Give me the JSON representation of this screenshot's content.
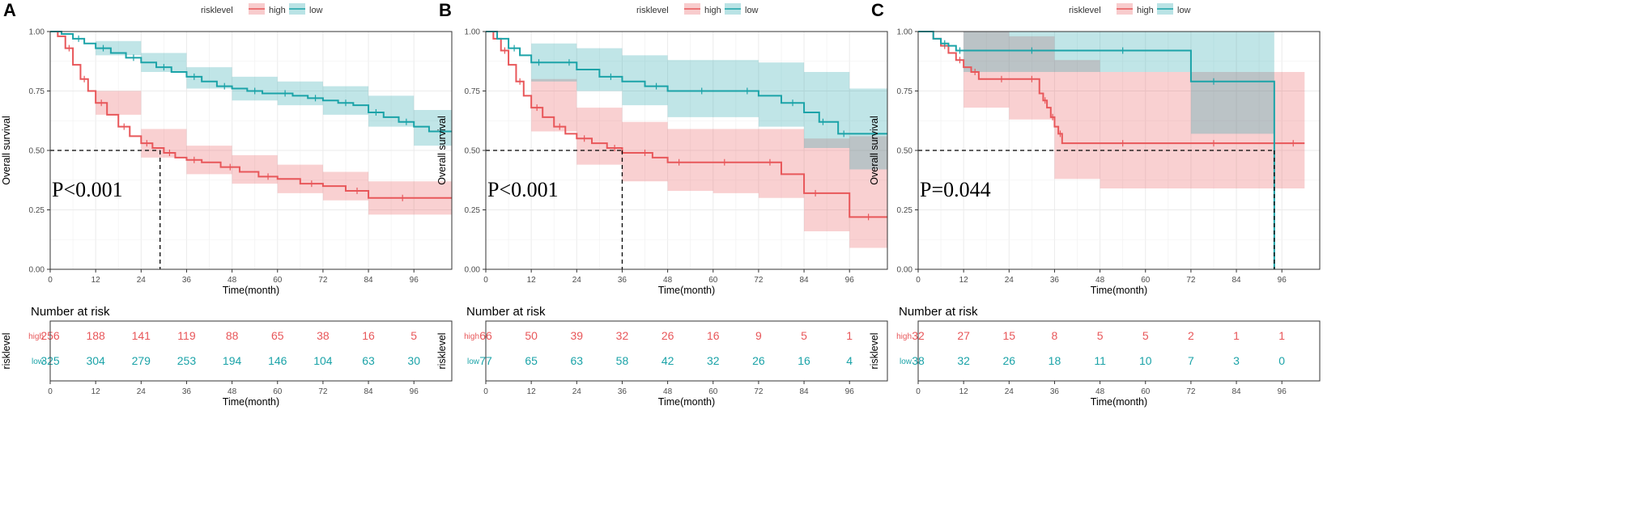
{
  "figure": {
    "legend_title": "risklevel"
  },
  "colors": {
    "high": "#E8575A",
    "low": "#1BA3A8",
    "grid": "#EBEBEB",
    "frame": "#333333"
  },
  "chart_data": [
    {
      "type": "line",
      "panel": "A",
      "legend_title": "risklevel",
      "legend": [
        "high",
        "low"
      ],
      "xlabel": "Time(month)",
      "ylabel": "Overall survival",
      "xlim": [
        0,
        106
      ],
      "ylim": [
        0,
        1
      ],
      "xticks": [
        0,
        12,
        24,
        36,
        48,
        60,
        72,
        84,
        96
      ],
      "yticks": [
        "0.00",
        "0.25",
        "0.50",
        "0.75",
        "1.00"
      ],
      "p_value": "P<0.001",
      "median": {
        "time": 29,
        "survival": 0.5
      },
      "series": [
        {
          "name": "high",
          "x": [
            0,
            2,
            4,
            6,
            8,
            10,
            12,
            15,
            18,
            21,
            24,
            27,
            30,
            33,
            36,
            40,
            45,
            50,
            55,
            60,
            66,
            72,
            78,
            84,
            90,
            96,
            106
          ],
          "y": [
            1.0,
            0.98,
            0.93,
            0.86,
            0.8,
            0.75,
            0.7,
            0.65,
            0.6,
            0.56,
            0.53,
            0.51,
            0.49,
            0.47,
            0.46,
            0.45,
            0.43,
            0.41,
            0.39,
            0.38,
            0.36,
            0.35,
            0.33,
            0.3,
            0.3,
            0.3,
            0.3
          ],
          "ci_band": [
            [
              0,
              1.0,
              1.0
            ],
            [
              12,
              0.65,
              0.75
            ],
            [
              24,
              0.47,
              0.59
            ],
            [
              36,
              0.4,
              0.52
            ],
            [
              48,
              0.36,
              0.48
            ],
            [
              60,
              0.32,
              0.44
            ],
            [
              72,
              0.29,
              0.41
            ],
            [
              84,
              0.23,
              0.37
            ],
            [
              106,
              0.22,
              0.38
            ]
          ],
          "at_risk": [
            256,
            188,
            141,
            119,
            88,
            65,
            38,
            16,
            5
          ]
        },
        {
          "name": "low",
          "x": [
            0,
            3,
            6,
            9,
            12,
            16,
            20,
            24,
            28,
            32,
            36,
            40,
            44,
            48,
            52,
            56,
            60,
            64,
            68,
            72,
            76,
            80,
            84,
            88,
            92,
            96,
            100,
            106
          ],
          "y": [
            1.0,
            0.99,
            0.97,
            0.95,
            0.93,
            0.91,
            0.89,
            0.87,
            0.85,
            0.83,
            0.81,
            0.79,
            0.77,
            0.76,
            0.75,
            0.74,
            0.74,
            0.73,
            0.72,
            0.71,
            0.7,
            0.69,
            0.66,
            0.64,
            0.62,
            0.6,
            0.58,
            0.58
          ],
          "ci_band": [
            [
              0,
              1.0,
              1.0
            ],
            [
              12,
              0.9,
              0.96
            ],
            [
              24,
              0.83,
              0.91
            ],
            [
              36,
              0.76,
              0.85
            ],
            [
              48,
              0.71,
              0.81
            ],
            [
              60,
              0.69,
              0.79
            ],
            [
              72,
              0.65,
              0.77
            ],
            [
              84,
              0.6,
              0.73
            ],
            [
              96,
              0.52,
              0.67
            ],
            [
              106,
              0.5,
              0.66
            ]
          ],
          "at_risk": [
            325,
            304,
            279,
            253,
            194,
            146,
            104,
            63,
            30
          ]
        }
      ]
    },
    {
      "type": "line",
      "panel": "B",
      "legend_title": "risklevel",
      "legend": [
        "high",
        "low"
      ],
      "xlabel": "Time(month)",
      "ylabel": "Overall survival",
      "xlim": [
        0,
        106
      ],
      "ylim": [
        0,
        1
      ],
      "xticks": [
        0,
        12,
        24,
        36,
        48,
        60,
        72,
        84,
        96
      ],
      "yticks": [
        "0.00",
        "0.25",
        "0.50",
        "0.75",
        "1.00"
      ],
      "p_value": "P<0.001",
      "median": {
        "time": 36,
        "survival": 0.5
      },
      "series": [
        {
          "name": "high",
          "x": [
            0,
            2,
            4,
            6,
            8,
            10,
            12,
            15,
            18,
            21,
            24,
            28,
            32,
            36,
            40,
            44,
            48,
            54,
            60,
            66,
            72,
            78,
            84,
            90,
            96,
            106
          ],
          "y": [
            1.0,
            0.97,
            0.92,
            0.86,
            0.79,
            0.73,
            0.68,
            0.64,
            0.6,
            0.57,
            0.55,
            0.53,
            0.51,
            0.49,
            0.49,
            0.47,
            0.45,
            0.45,
            0.45,
            0.45,
            0.45,
            0.4,
            0.32,
            0.32,
            0.22,
            0.22
          ],
          "ci_band": [
            [
              0,
              1.0,
              1.0
            ],
            [
              12,
              0.58,
              0.8
            ],
            [
              24,
              0.44,
              0.68
            ],
            [
              36,
              0.37,
              0.62
            ],
            [
              48,
              0.33,
              0.59
            ],
            [
              60,
              0.32,
              0.59
            ],
            [
              72,
              0.3,
              0.59
            ],
            [
              84,
              0.16,
              0.55
            ],
            [
              96,
              0.09,
              0.56
            ],
            [
              106,
              0.08,
              0.57
            ]
          ],
          "at_risk": [
            66,
            50,
            39,
            32,
            26,
            16,
            9,
            5,
            1
          ]
        },
        {
          "name": "low",
          "x": [
            0,
            3,
            6,
            9,
            12,
            16,
            20,
            24,
            30,
            36,
            42,
            48,
            54,
            60,
            66,
            72,
            78,
            84,
            88,
            90,
            93,
            96,
            106
          ],
          "y": [
            1.0,
            0.97,
            0.93,
            0.9,
            0.87,
            0.87,
            0.87,
            0.84,
            0.81,
            0.79,
            0.77,
            0.75,
            0.75,
            0.75,
            0.75,
            0.73,
            0.7,
            0.66,
            0.62,
            0.62,
            0.57,
            0.57,
            0.57
          ],
          "ci_band": [
            [
              0,
              1.0,
              1.0
            ],
            [
              12,
              0.79,
              0.95
            ],
            [
              24,
              0.75,
              0.93
            ],
            [
              36,
              0.69,
              0.9
            ],
            [
              48,
              0.64,
              0.88
            ],
            [
              60,
              0.64,
              0.88
            ],
            [
              72,
              0.6,
              0.87
            ],
            [
              84,
              0.51,
              0.83
            ],
            [
              96,
              0.42,
              0.76
            ],
            [
              106,
              0.42,
              0.76
            ]
          ],
          "at_risk": [
            77,
            65,
            63,
            58,
            42,
            32,
            26,
            16,
            4
          ]
        }
      ]
    },
    {
      "type": "line",
      "panel": "C",
      "legend_title": "risklevel",
      "legend": [
        "high",
        "low"
      ],
      "xlabel": "Time(month)",
      "ylabel": "Overall survival",
      "xlim": [
        0,
        106
      ],
      "ylim": [
        0,
        1
      ],
      "xticks": [
        0,
        12,
        24,
        36,
        48,
        60,
        72,
        84,
        96
      ],
      "yticks": [
        "0.00",
        "0.25",
        "0.50",
        "0.75",
        "1.00"
      ],
      "p_value": "P=0.044",
      "median": {
        "time": 94,
        "survival": 0.5
      },
      "series": [
        {
          "name": "high",
          "x": [
            0,
            4,
            6,
            8,
            10,
            12,
            14,
            16,
            20,
            24,
            28,
            32,
            33,
            34,
            35,
            36,
            37,
            38,
            48,
            60,
            72,
            84,
            96,
            102
          ],
          "y": [
            1.0,
            0.97,
            0.94,
            0.91,
            0.88,
            0.85,
            0.83,
            0.8,
            0.8,
            0.8,
            0.8,
            0.74,
            0.71,
            0.68,
            0.64,
            0.6,
            0.57,
            0.53,
            0.53,
            0.53,
            0.53,
            0.53,
            0.53,
            0.53
          ],
          "ci_band": [
            [
              0,
              1.0,
              1.0
            ],
            [
              12,
              0.68,
              1.0
            ],
            [
              24,
              0.63,
              0.98
            ],
            [
              36,
              0.38,
              0.88
            ],
            [
              48,
              0.34,
              0.83
            ],
            [
              72,
              0.34,
              0.83
            ],
            [
              96,
              0.34,
              0.83
            ],
            [
              102,
              0.34,
              0.83
            ]
          ],
          "at_risk": [
            32,
            27,
            15,
            8,
            5,
            5,
            2,
            1,
            1
          ]
        },
        {
          "name": "low",
          "x": [
            0,
            4,
            6,
            8,
            10,
            12,
            24,
            36,
            48,
            60,
            72,
            84,
            94
          ],
          "y": [
            1.0,
            0.97,
            0.95,
            0.94,
            0.92,
            0.92,
            0.92,
            0.92,
            0.92,
            0.92,
            0.79,
            0.79,
            0.0
          ],
          "ci_band": [
            [
              0,
              1.0,
              1.0
            ],
            [
              12,
              0.83,
              1.0
            ],
            [
              36,
              0.83,
              1.0
            ],
            [
              60,
              0.83,
              1.0
            ],
            [
              72,
              0.57,
              1.0
            ],
            [
              94,
              0.57,
              1.0
            ]
          ],
          "at_risk": [
            38,
            32,
            26,
            18,
            11,
            10,
            7,
            3,
            0
          ]
        }
      ]
    }
  ],
  "risk_tables": [
    {
      "title": "Number at risk",
      "ylabel": "risklevel",
      "xlabel": "Time(month)",
      "rows": [
        {
          "label": "high",
          "values": [
            256,
            188,
            141,
            119,
            88,
            65,
            38,
            16,
            5
          ]
        },
        {
          "label": "low",
          "values": [
            325,
            304,
            279,
            253,
            194,
            146,
            104,
            63,
            30
          ]
        }
      ]
    },
    {
      "title": "Number at risk",
      "ylabel": "risklevel",
      "xlabel": "Time(month)",
      "rows": [
        {
          "label": "high",
          "values": [
            66,
            50,
            39,
            32,
            26,
            16,
            9,
            5,
            1
          ]
        },
        {
          "label": "low",
          "values": [
            77,
            65,
            63,
            58,
            42,
            32,
            26,
            16,
            4
          ]
        }
      ]
    },
    {
      "title": "Number at risk",
      "ylabel": "risklevel",
      "xlabel": "Time(month)",
      "rows": [
        {
          "label": "high",
          "values": [
            32,
            27,
            15,
            8,
            5,
            5,
            2,
            1,
            1
          ]
        },
        {
          "label": "low",
          "values": [
            38,
            32,
            26,
            18,
            11,
            10,
            7,
            3,
            0
          ]
        }
      ]
    }
  ]
}
